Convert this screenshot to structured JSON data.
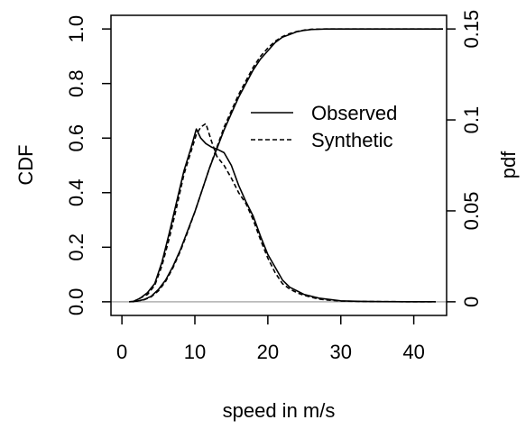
{
  "chart_data": {
    "type": "line",
    "xlabel": "speed in m/s",
    "ylabel_left": "CDF",
    "ylabel_right": "pdf",
    "xlim": [
      -1.5,
      44.5
    ],
    "ylim_left": [
      -0.05,
      1.05
    ],
    "ylim_right": [
      -0.0075,
      0.1575
    ],
    "x_ticks": [
      0,
      10,
      20,
      30,
      40
    ],
    "x_tick_labels": [
      "0",
      "10",
      "20",
      "30",
      "40"
    ],
    "y_left_ticks": [
      0.0,
      0.2,
      0.4,
      0.6,
      0.8,
      1.0
    ],
    "y_left_tick_labels": [
      "0.0",
      "0.2",
      "0.4",
      "0.6",
      "0.8",
      "1.0"
    ],
    "y_right_ticks": [
      0,
      0.05,
      0.1,
      0.15
    ],
    "y_right_tick_labels": [
      "0",
      "0.05",
      "0.1",
      "0.15"
    ],
    "grid": false,
    "legend_position": "center-right",
    "reference_line": {
      "y": 0,
      "color": "#b0b0b0"
    },
    "series": [
      {
        "name": "Observed",
        "style": "solid",
        "axis": "left",
        "x": [
          1,
          2,
          3,
          4,
          5,
          6,
          7,
          8,
          9,
          10,
          11,
          12,
          13,
          14,
          15,
          16,
          17,
          18,
          19,
          20,
          21,
          22,
          23,
          24,
          25,
          26,
          28,
          30,
          35,
          40,
          44
        ],
        "values": [
          0.0,
          0.002,
          0.008,
          0.02,
          0.045,
          0.08,
          0.13,
          0.19,
          0.26,
          0.33,
          0.41,
          0.49,
          0.56,
          0.63,
          0.69,
          0.75,
          0.8,
          0.85,
          0.89,
          0.92,
          0.95,
          0.97,
          0.98,
          0.99,
          0.995,
          0.998,
          1.0,
          1.0,
          1.0,
          1.0,
          1.0
        ]
      },
      {
        "name": "Synthetic",
        "style": "dashed",
        "axis": "left",
        "x": [
          1,
          2,
          3,
          4,
          5,
          6,
          7,
          8,
          9,
          10,
          11,
          12,
          13,
          14,
          15,
          16,
          17,
          18,
          19,
          20,
          21,
          22,
          23,
          24,
          25,
          26,
          28,
          30,
          35,
          40,
          44
        ],
        "values": [
          0.0,
          0.002,
          0.007,
          0.018,
          0.04,
          0.075,
          0.125,
          0.185,
          0.255,
          0.33,
          0.41,
          0.49,
          0.565,
          0.64,
          0.7,
          0.76,
          0.81,
          0.86,
          0.9,
          0.93,
          0.955,
          0.972,
          0.983,
          0.991,
          0.996,
          0.999,
          1.0,
          1.0,
          1.0,
          1.0,
          1.0
        ]
      },
      {
        "name": "Observed",
        "style": "solid",
        "axis": "right",
        "x": [
          1.5,
          2.5,
          3.5,
          4.5,
          5.5,
          6.5,
          7.5,
          8.5,
          9.5,
          10.2,
          10.8,
          11.5,
          12.3,
          13,
          14,
          15,
          16,
          17,
          18,
          19,
          20,
          21,
          22,
          23,
          24,
          25,
          26,
          27,
          28,
          29,
          30,
          33,
          36,
          40,
          43
        ],
        "values": [
          0.0,
          0.002,
          0.005,
          0.01,
          0.022,
          0.038,
          0.055,
          0.072,
          0.085,
          0.095,
          0.09,
          0.087,
          0.085,
          0.084,
          0.082,
          0.075,
          0.064,
          0.055,
          0.047,
          0.036,
          0.026,
          0.019,
          0.012,
          0.008,
          0.006,
          0.004,
          0.003,
          0.002,
          0.0015,
          0.001,
          0.0005,
          0.0002,
          0.0001,
          0.0,
          0.0
        ]
      },
      {
        "name": "Synthetic",
        "style": "dashed",
        "axis": "right",
        "x": [
          1.5,
          2.5,
          3.5,
          4.5,
          5.5,
          6.5,
          7.5,
          8.5,
          9.5,
          10.2,
          10.8,
          11.5,
          12.3,
          13,
          14,
          15,
          16,
          17,
          18,
          19,
          20,
          21,
          22,
          23,
          24,
          25,
          26,
          27,
          28,
          29,
          30,
          33,
          36,
          40,
          43
        ],
        "values": [
          0.0,
          0.002,
          0.004,
          0.009,
          0.02,
          0.035,
          0.052,
          0.07,
          0.083,
          0.092,
          0.096,
          0.098,
          0.088,
          0.08,
          0.075,
          0.068,
          0.06,
          0.054,
          0.045,
          0.034,
          0.024,
          0.016,
          0.01,
          0.007,
          0.005,
          0.0035,
          0.0025,
          0.0015,
          0.001,
          0.0007,
          0.0004,
          0.0002,
          0.0001,
          0.0,
          0.0
        ]
      }
    ]
  }
}
